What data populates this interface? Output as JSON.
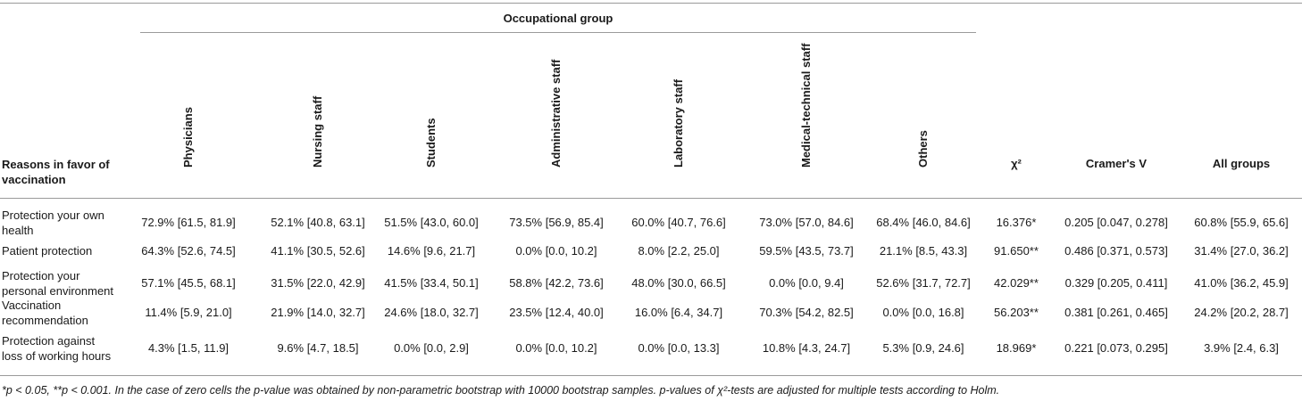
{
  "table": {
    "group_header": "Occupational group",
    "row_header": [
      "Reasons in favor of",
      "vaccination"
    ],
    "occupations": [
      "Physicians",
      "Nursing staff",
      "Students",
      "Administrative staff",
      "Laboratory staff",
      "Medical-technical staff",
      "Others"
    ],
    "chi_header": "χ²",
    "cramer_header": "Cramer's V",
    "all_header": "All groups",
    "rows": [
      {
        "label": [
          "Protection your own",
          "health"
        ],
        "cells": [
          "72.9% [61.5, 81.9]",
          "52.1% [40.8, 63.1]",
          "51.5% [43.0, 60.0]",
          "73.5% [56.9, 85.4]",
          "60.0% [40.7, 76.6]",
          "73.0% [57.0, 84.6]",
          "68.4% [46.0, 84.6]"
        ],
        "chi": "16.376*",
        "cramer": "0.205 [0.047, 0.278]",
        "all": "60.8% [55.9, 65.6]"
      },
      {
        "label": [
          "Patient protection"
        ],
        "cells": [
          "64.3% [52.6, 74.5]",
          "41.1% [30.5, 52.6]",
          "14.6% [9.6, 21.7]",
          "0.0% [0.0, 10.2]",
          "8.0% [2.2, 25.0]",
          "59.5% [43.5, 73.7]",
          "21.1% [8.5, 43.3]"
        ],
        "chi": "91.650**",
        "cramer": "0.486 [0.371, 0.573]",
        "all": "31.4% [27.0, 36.2]"
      },
      {
        "label": [
          "Protection your",
          "personal environment"
        ],
        "cells": [
          "57.1% [45.5, 68.1]",
          "31.5% [22.0, 42.9]",
          "41.5% [33.4, 50.1]",
          "58.8% [42.2, 73.6]",
          "48.0% [30.0, 66.5]",
          "0.0% [0.0, 9.4]",
          "52.6% [31.7, 72.7]"
        ],
        "chi": "42.029**",
        "cramer": "0.329 [0.205, 0.411]",
        "all": "41.0% [36.2, 45.9]"
      },
      {
        "label": [
          "Vaccination",
          "recommendation"
        ],
        "cells": [
          "11.4% [5.9, 21.0]",
          "21.9% [14.0, 32.7]",
          "24.6% [18.0, 32.7]",
          "23.5% [12.4, 40.0]",
          "16.0% [6.4, 34.7]",
          "70.3% [54.2, 82.5]",
          "0.0% [0.0, 16.8]"
        ],
        "chi": "56.203**",
        "cramer": "0.381 [0.261, 0.465]",
        "all": "24.2% [20.2, 28.7]"
      },
      {
        "label": [
          "Protection against",
          "loss of working hours"
        ],
        "cells": [
          "4.3% [1.5, 11.9]",
          "9.6% [4.7, 18.5]",
          "0.0% [0.0, 2.9]",
          "0.0% [0.0, 10.2]",
          "0.0% [0.0, 13.3]",
          "10.8% [4.3, 24.7]",
          "5.3% [0.9, 24.6]"
        ],
        "chi": "18.969*",
        "cramer": "0.221 [0.073, 0.295]",
        "all": "3.9% [2.4, 6.3]"
      }
    ]
  },
  "footnote": "*p < 0.05, **p < 0.001. In the case of zero cells the p-value was obtained by non-parametric bootstrap with 10000 bootstrap samples. p-values of χ²-tests are adjusted for multiple tests according to Holm."
}
